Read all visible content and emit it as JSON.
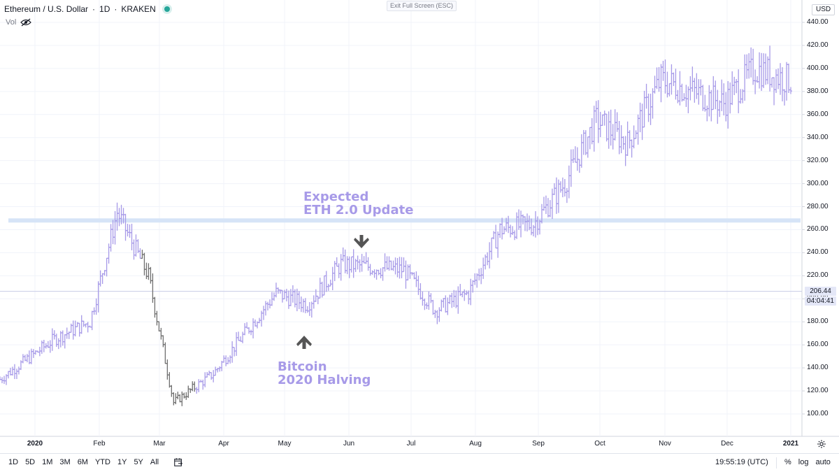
{
  "legend": {
    "symbol": "Ethereum / U.S. Dollar",
    "interval": "1D",
    "exchange": "KRAKEN",
    "vol_label": "Vol"
  },
  "toolbar": {
    "exit_fullscreen": "Exit Full Screen (ESC)"
  },
  "price_axis": {
    "currency": "USD",
    "ticks": [
      "440.00",
      "420.00",
      "400.00",
      "380.00",
      "360.00",
      "340.00",
      "320.00",
      "300.00",
      "280.00",
      "260.00",
      "240.00",
      "220.00",
      "200.00",
      "180.00",
      "160.00",
      "140.00",
      "120.00",
      "100.00"
    ],
    "last_price": "206.44",
    "countdown": "04:04:41"
  },
  "time_axis": {
    "ticks": [
      "2020",
      "Feb",
      "Mar",
      "Apr",
      "May",
      "Jun",
      "Jul",
      "Aug",
      "Sep",
      "Oct",
      "Nov",
      "Dec",
      "2021"
    ]
  },
  "annotations": {
    "eth_update": {
      "line1": "Expected",
      "line2": "ETH 2.0 Update"
    },
    "btc_halving": {
      "line1": "Bitcoin",
      "line2": "2020 Halving"
    }
  },
  "bottom_bar": {
    "ranges": [
      "1D",
      "5D",
      "1M",
      "3M",
      "6M",
      "YTD",
      "1Y",
      "5Y",
      "All"
    ],
    "clock": "19:55:19 (UTC)",
    "scale_options": [
      "%",
      "log",
      "auto"
    ]
  },
  "colors": {
    "bar_color": "#a79ae8",
    "dark_bar_color": "#6f6f6f",
    "highlight_line": "#d6e4f7",
    "accent": "#26a69a",
    "arrow": "#555555"
  },
  "chart_data": {
    "type": "ohlc",
    "x_range": [
      "2019-12-20",
      "2021-01-10"
    ],
    "y_range": [
      85,
      450
    ],
    "series": [
      {
        "date": "2019-12",
        "close": 130
      },
      {
        "date": "2020-01-15",
        "close": 165
      },
      {
        "date": "2020-02-01",
        "close": 180
      },
      {
        "date": "2020-02-14",
        "close": 275
      },
      {
        "date": "2020-02-29",
        "close": 220
      },
      {
        "date": "2020-03-12",
        "close": 110
      },
      {
        "date": "2020-03-31",
        "close": 135
      },
      {
        "date": "2020-04-30",
        "close": 205
      },
      {
        "date": "2020-05-15",
        "close": 195
      },
      {
        "date": "2020-05-31",
        "close": 230
      },
      {
        "date": "2020-06-30",
        "close": 225
      },
      {
        "date": "2020-07-15",
        "close": 190
      },
      {
        "date": "2020-07-31",
        "close": 205
      },
      {
        "date": "2020-08-15",
        "close": 260
      },
      {
        "date": "2020-08-31",
        "close": 265
      },
      {
        "date": "2020-09-15",
        "close": 300
      },
      {
        "date": "2020-09-30",
        "close": 355
      },
      {
        "date": "2020-10-15",
        "close": 335
      },
      {
        "date": "2020-10-31",
        "close": 390
      },
      {
        "date": "2020-11-15",
        "close": 380
      },
      {
        "date": "2020-11-30",
        "close": 370
      },
      {
        "date": "2020-12-15",
        "close": 400
      },
      {
        "date": "2020-12-31",
        "close": 390
      }
    ],
    "highlight_level": 268
  }
}
